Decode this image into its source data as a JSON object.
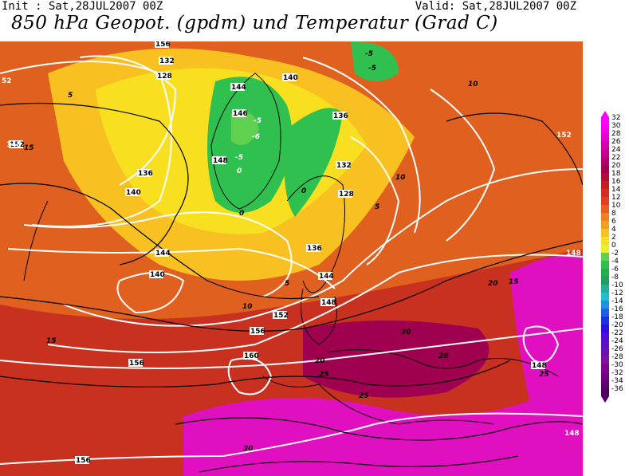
{
  "header": {
    "init": "Init : Sat,28JUL2007 00Z",
    "valid": "Valid: Sat,28JUL2007 00Z",
    "title": "850 hPa Geopot. (gpdm) und Temperatur (Grad C)"
  },
  "legend": {
    "labels": [
      "32",
      "30",
      "28",
      "26",
      "24",
      "22",
      "20",
      "18",
      "16",
      "14",
      "12",
      "10",
      "8",
      "6",
      "4",
      "2",
      "0",
      "-2",
      "-4",
      "-6",
      "-8",
      "-10",
      "-12",
      "-14",
      "-16",
      "-18",
      "-20",
      "-22",
      "-24",
      "-26",
      "-28",
      "-30",
      "-32",
      "-34",
      "-36"
    ],
    "colors": [
      "#ff00ff",
      "#f000e8",
      "#e000d0",
      "#d000b0",
      "#c00090",
      "#b00070",
      "#a00050",
      "#b01030",
      "#c02020",
      "#d03020",
      "#e04020",
      "#e86020",
      "#f08020",
      "#f0a020",
      "#f8c020",
      "#f8e020",
      "#e8f030",
      "#60d050",
      "#30c050",
      "#20b050",
      "#20a060",
      "#20b0a0",
      "#20c0d0",
      "#2090e0",
      "#2060e0",
      "#2030e0",
      "#3010e0",
      "#5010d0",
      "#6010c0",
      "#7010b0",
      "#8010a0",
      "#800090",
      "#700080",
      "#600070",
      "#500060"
    ]
  },
  "map": {
    "geopotential_labels": [
      "156",
      "132",
      "128",
      "144",
      "140",
      "146",
      "136",
      "148",
      "152",
      "160",
      "136",
      "128",
      "132",
      "140",
      "144",
      "136",
      "148",
      "152",
      "156",
      "156",
      "156",
      "148",
      "140",
      "144"
    ],
    "temperature_labels": [
      "-5",
      "-6",
      "-5",
      "-5",
      "0",
      "0",
      "5",
      "5",
      "10",
      "10",
      "15",
      "15",
      "20",
      "20",
      "25",
      "25",
      "30",
      "30",
      "5",
      "10",
      "15",
      "20",
      "25",
      "-5",
      "0"
    ],
    "edge_labels": [
      "52",
      "148",
      "148",
      "152",
      "148"
    ]
  }
}
